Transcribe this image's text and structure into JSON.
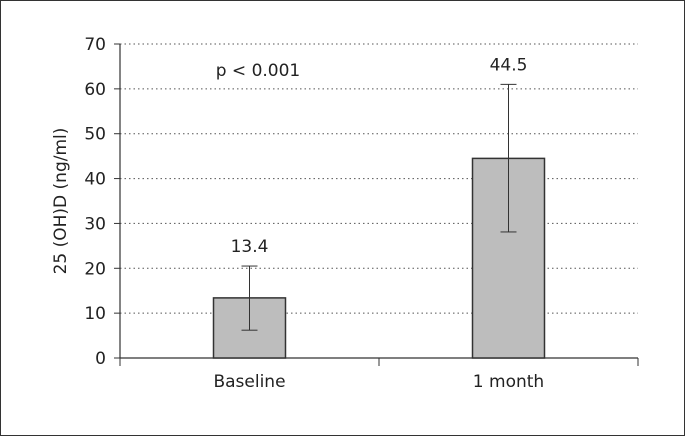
{
  "chart_data": {
    "type": "bar",
    "title": "",
    "xlabel": "",
    "ylabel": "25 (OH)D (ng/ml)",
    "ylim": [
      0,
      70
    ],
    "yticks": [
      0,
      10,
      20,
      30,
      40,
      50,
      60,
      70
    ],
    "categories": [
      "Baseline",
      "1 month"
    ],
    "values": [
      13.4,
      44.5
    ],
    "value_labels": [
      "13.4",
      "44.5"
    ],
    "error_low": [
      6.2,
      28.1
    ],
    "error_high": [
      20.5,
      61.0
    ],
    "annotation": "p < 0.001",
    "grid": "horizontal dotted",
    "bar_color": "#bdbdbd",
    "bar_edge_color": "#333333"
  }
}
